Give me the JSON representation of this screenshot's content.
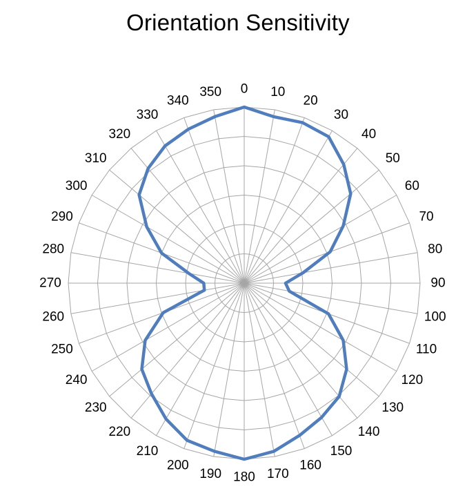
{
  "chart_data": {
    "type": "radar",
    "title": "Orientation Sensitivity",
    "categories": [
      "0",
      "10",
      "20",
      "30",
      "40",
      "50",
      "60",
      "70",
      "80",
      "90",
      "100",
      "110",
      "120",
      "130",
      "140",
      "150",
      "160",
      "170",
      "180",
      "190",
      "200",
      "210",
      "220",
      "230",
      "240",
      "250",
      "260",
      "270",
      "280",
      "290",
      "300",
      "310",
      "320",
      "330",
      "340",
      "350"
    ],
    "series": [
      {
        "values": [
          10.0,
          9.6,
          9.7,
          9.6,
          8.8,
          7.9,
          6.5,
          5.2,
          3.4,
          2.35,
          2.6,
          5.1,
          6.5,
          7.6,
          8.4,
          8.8,
          9.2,
          9.7,
          10.0,
          9.7,
          9.5,
          8.9,
          8.2,
          7.6,
          6.5,
          4.9,
          2.3,
          2.3,
          3.2,
          5.0,
          6.4,
          7.8,
          8.5,
          9.0,
          9.3,
          9.6
        ]
      }
    ],
    "rmax": 10,
    "ring_count": 6,
    "grid": true,
    "line_color": "#4f7dbd",
    "grid_color": "#a6a6a6"
  }
}
